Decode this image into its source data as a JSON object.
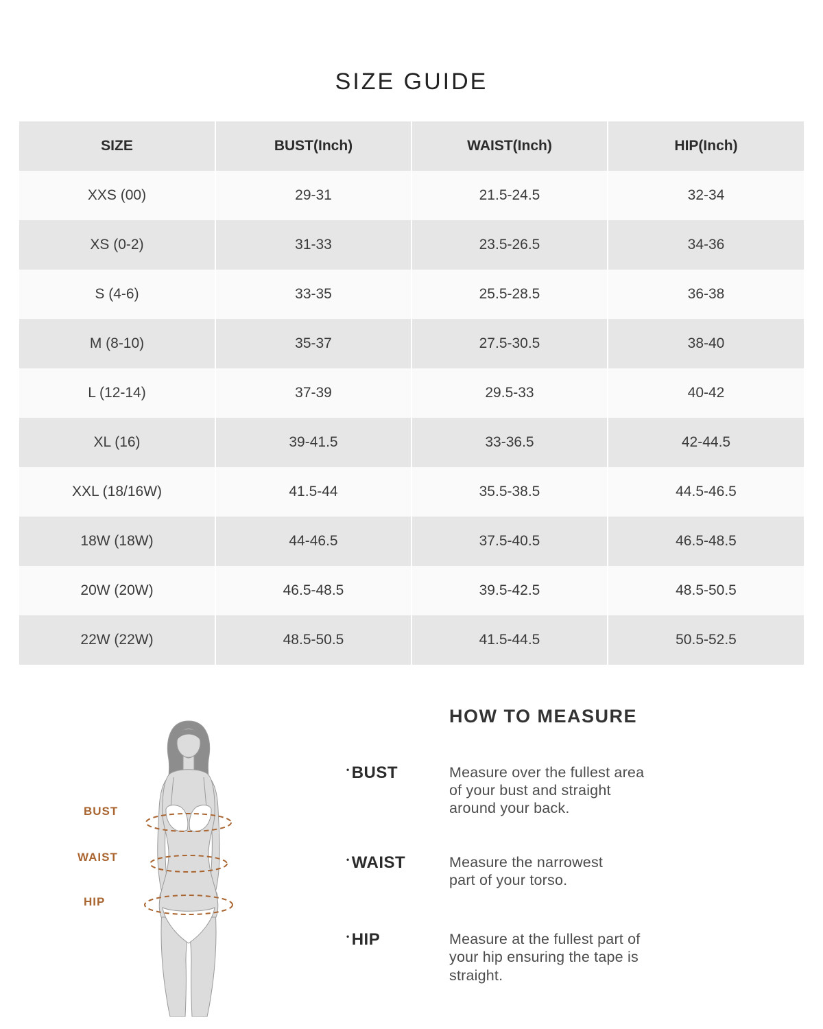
{
  "page": {
    "title": "SIZE GUIDE"
  },
  "size_table": {
    "headers": [
      "SIZE",
      "BUST(Inch)",
      "WAIST(Inch)",
      "HIP(Inch)"
    ],
    "rows": [
      [
        "XXS (00)",
        "29-31",
        "21.5-24.5",
        "32-34"
      ],
      [
        "XS (0-2)",
        "31-33",
        "23.5-26.5",
        "34-36"
      ],
      [
        "S (4-6)",
        "33-35",
        "25.5-28.5",
        "36-38"
      ],
      [
        "M (8-10)",
        "35-37",
        "27.5-30.5",
        "38-40"
      ],
      [
        "L (12-14)",
        "37-39",
        "29.5-33",
        "40-42"
      ],
      [
        "XL (16)",
        "39-41.5",
        "33-36.5",
        "42-44.5"
      ],
      [
        "XXL (18/16W)",
        "41.5-44",
        "35.5-38.5",
        "44.5-46.5"
      ],
      [
        "18W (18W)",
        "44-46.5",
        "37.5-40.5",
        "46.5-48.5"
      ],
      [
        "20W (20W)",
        "46.5-48.5",
        "39.5-42.5",
        "48.5-50.5"
      ],
      [
        "22W (22W)",
        "48.5-50.5",
        "41.5-44.5",
        "50.5-52.5"
      ]
    ]
  },
  "how_to_measure": {
    "heading": "HOW TO MEASURE",
    "items": [
      {
        "label": "BUST",
        "description": "Measure over the fullest area\nof your bust and straight\naround your back."
      },
      {
        "label": "WAIST",
        "description": "Measure the narrowest\npart of your torso."
      },
      {
        "label": "HIP",
        "description": "Measure at the fullest part of\nyour hip ensuring the tape is\nstraight."
      }
    ]
  },
  "figure": {
    "labels": [
      "BUST",
      "WAIST",
      "HIP"
    ]
  },
  "colors": {
    "accent_brown": "#a9642f",
    "row_gray": "#e6e6e6",
    "row_light": "#fafafa",
    "text_dark": "#333333"
  }
}
